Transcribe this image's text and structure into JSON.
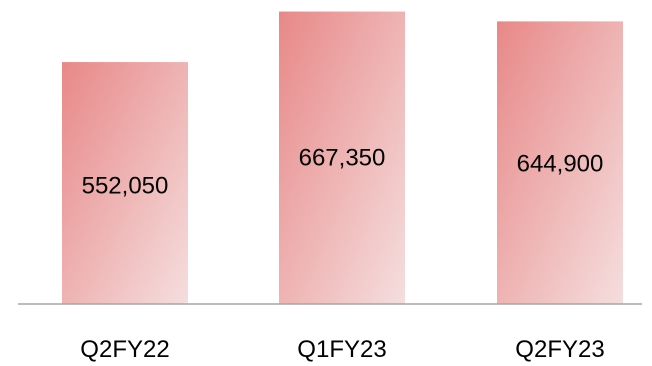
{
  "chart_data": {
    "type": "bar",
    "categories": [
      "Q2FY22",
      "Q1FY23",
      "Q2FY23"
    ],
    "values": [
      552050,
      667350,
      644900
    ],
    "value_labels": [
      "552,050",
      "667,350",
      "644,900"
    ],
    "title": "",
    "xlabel": "",
    "ylabel": "",
    "ylim": [
      0,
      680000
    ],
    "grid": false,
    "legend": "none",
    "colors": {
      "bar_start": "#e88888",
      "bar_end": "#f5dede",
      "axis": "#a6a6a6"
    }
  }
}
